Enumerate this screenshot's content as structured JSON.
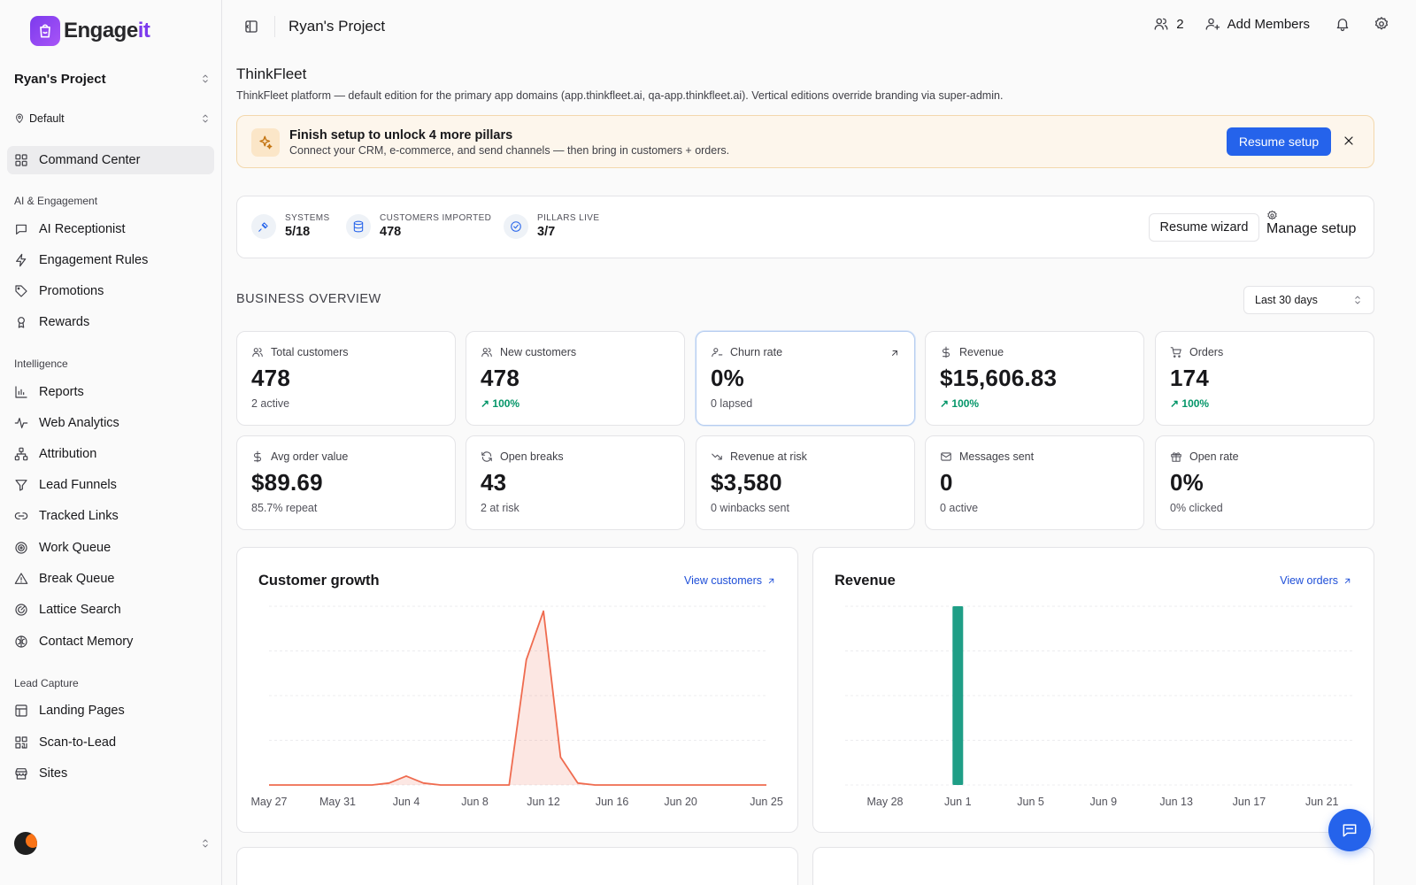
{
  "app": {
    "brand_main": "Engage",
    "brand_accent": "it",
    "accent_color": "#7c3aed",
    "primary_color": "#2563eb"
  },
  "sidebar": {
    "project": "Ryan's Project",
    "environment": "Default",
    "command_center": "Command Center",
    "sections": [
      {
        "title": "AI & Engagement",
        "items": [
          {
            "label": "AI Receptionist",
            "icon": "chat-icon"
          },
          {
            "label": "Engagement Rules",
            "icon": "bolt-icon"
          },
          {
            "label": "Promotions",
            "icon": "tag-icon"
          },
          {
            "label": "Rewards",
            "icon": "award-icon"
          }
        ]
      },
      {
        "title": "Intelligence",
        "items": [
          {
            "label": "Reports",
            "icon": "bar-chart-icon"
          },
          {
            "label": "Web Analytics",
            "icon": "activity-icon"
          },
          {
            "label": "Attribution",
            "icon": "network-icon"
          },
          {
            "label": "Lead Funnels",
            "icon": "filter-icon"
          },
          {
            "label": "Tracked Links",
            "icon": "link-icon"
          },
          {
            "label": "Work Queue",
            "icon": "target-icon"
          },
          {
            "label": "Break Queue",
            "icon": "warning-icon"
          },
          {
            "label": "Lattice Search",
            "icon": "radar-icon"
          },
          {
            "label": "Contact Memory",
            "icon": "brain-icon"
          }
        ]
      },
      {
        "title": "Lead Capture",
        "items": [
          {
            "label": "Landing Pages",
            "icon": "layout-icon"
          },
          {
            "label": "Scan-to-Lead",
            "icon": "qr-code-icon"
          },
          {
            "label": "Sites",
            "icon": "store-icon"
          }
        ]
      }
    ]
  },
  "topbar": {
    "title": "Ryan's Project",
    "member_count": "2",
    "add_members": "Add Members"
  },
  "org": {
    "name": "ThinkFleet",
    "description": "ThinkFleet platform — default edition for the primary app domains (app.thinkfleet.ai, qa-app.thinkfleet.ai). Vertical editions override branding via super-admin."
  },
  "banner": {
    "title": "Finish setup to unlock 4 more pillars",
    "subtitle": "Connect your CRM, e-commerce, and send channels — then bring in customers + orders.",
    "button": "Resume setup"
  },
  "setup_progress": {
    "stats": [
      {
        "label": "SYSTEMS",
        "value": "5/18"
      },
      {
        "label": "CUSTOMERS IMPORTED",
        "value": "478"
      },
      {
        "label": "PILLARS LIVE",
        "value": "3/7"
      }
    ],
    "resume_wizard": "Resume wizard",
    "manage_setup": "Manage setup"
  },
  "overview": {
    "title": "BUSINESS OVERVIEW",
    "range": "Last 30 days",
    "kpis": [
      {
        "label": "Total customers",
        "value": "478",
        "sub": "2 active",
        "icon": "users-icon"
      },
      {
        "label": "New customers",
        "value": "478",
        "sub": "↗ 100%",
        "icon": "users-icon"
      },
      {
        "label": "Churn rate",
        "value": "0%",
        "sub": "0 lapsed",
        "icon": "user-minus-icon"
      },
      {
        "label": "Revenue",
        "value": "$15,606.83",
        "sub": "↗ 100%",
        "icon": "dollar-icon"
      },
      {
        "label": "Orders",
        "value": "174",
        "sub": "↗ 100%",
        "icon": "cart-icon"
      },
      {
        "label": "Avg order value",
        "value": "$89.69",
        "sub": "85.7% repeat",
        "icon": "dollar-icon"
      },
      {
        "label": "Open breaks",
        "value": "43",
        "sub": "2 at risk",
        "icon": "refresh-icon"
      },
      {
        "label": "Revenue at risk",
        "value": "$3,580",
        "sub": "0 winbacks sent",
        "icon": "trending-down-icon"
      },
      {
        "label": "Messages sent",
        "value": "0",
        "sub": "0 active",
        "icon": "mail-icon"
      },
      {
        "label": "Open rate",
        "value": "0%",
        "sub": "0% clicked",
        "icon": "gift-icon"
      }
    ]
  },
  "charts": {
    "growth": {
      "title": "Customer growth",
      "link": "View customers"
    },
    "revenue": {
      "title": "Revenue",
      "link": "View orders"
    }
  },
  "chart_data": [
    {
      "type": "area",
      "title": "Customer growth",
      "x_ticks": [
        "May 27",
        "May 31",
        "Jun 4",
        "Jun 8",
        "Jun 12",
        "Jun 16",
        "Jun 20",
        "Jun 25"
      ],
      "x": [
        "May 27",
        "May 28",
        "May 29",
        "May 30",
        "May 31",
        "Jun 1",
        "Jun 2",
        "Jun 3",
        "Jun 4",
        "Jun 5",
        "Jun 6",
        "Jun 7",
        "Jun 8",
        "Jun 9",
        "Jun 10",
        "Jun 11",
        "Jun 12",
        "Jun 13",
        "Jun 14",
        "Jun 15",
        "Jun 16",
        "Jun 17",
        "Jun 18",
        "Jun 19",
        "Jun 20",
        "Jun 21",
        "Jun 22",
        "Jun 23",
        "Jun 24",
        "Jun 25"
      ],
      "values": [
        0,
        0,
        0,
        0,
        0,
        0,
        0,
        2,
        9,
        2,
        0,
        0,
        0,
        0,
        0,
        126,
        175,
        28,
        2,
        0,
        0,
        0,
        0,
        0,
        0,
        0,
        0,
        0,
        0,
        0
      ],
      "color": "#ef6b4f"
    },
    {
      "type": "bar",
      "title": "Revenue",
      "x_ticks": [
        "May 28",
        "Jun 1",
        "Jun 5",
        "Jun 9",
        "Jun 13",
        "Jun 17",
        "Jun 21",
        "Jun 25"
      ],
      "x": [
        "May 28",
        "May 29",
        "May 30",
        "May 31",
        "Jun 1",
        "Jun 2",
        "Jun 3",
        "Jun 4",
        "Jun 5",
        "Jun 6",
        "Jun 7",
        "Jun 8",
        "Jun 9",
        "Jun 10",
        "Jun 11",
        "Jun 12",
        "Jun 13",
        "Jun 14",
        "Jun 15",
        "Jun 16",
        "Jun 17",
        "Jun 18",
        "Jun 19",
        "Jun 20",
        "Jun 21",
        "Jun 22",
        "Jun 23",
        "Jun 24",
        "Jun 25"
      ],
      "values": [
        0,
        0,
        0,
        0,
        15606.83,
        0,
        0,
        0,
        0,
        0,
        0,
        0,
        0,
        0,
        0,
        0,
        0,
        0,
        0,
        0,
        0,
        0,
        0,
        0,
        0,
        0,
        0,
        0,
        0
      ],
      "color": "#1f9e86"
    }
  ]
}
